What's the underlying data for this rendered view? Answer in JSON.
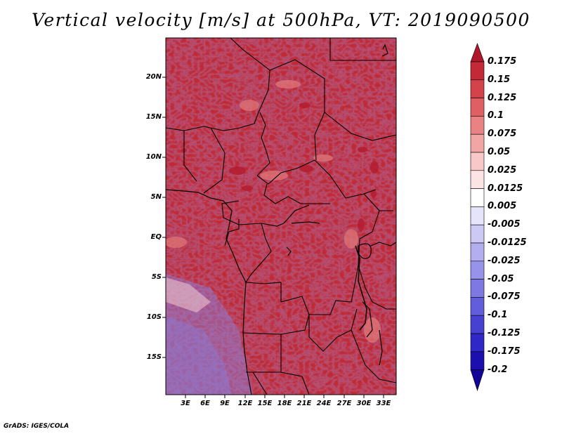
{
  "title": "Vertical velocity [m/s] at 500hPa, VT: 2019090500",
  "credit": "GrADS: IGES/COLA",
  "map": {
    "variable": "Vertical velocity",
    "units": "m/s",
    "level": "500hPa",
    "valid_time": "2019090500",
    "lat_labels": [
      "20N",
      "15N",
      "10N",
      "5N",
      "EQ",
      "5S",
      "10S",
      "15S"
    ],
    "lon_labels": [
      "3E",
      "6E",
      "9E",
      "12E",
      "15E",
      "18E",
      "21E",
      "24E",
      "27E",
      "30E",
      "33E"
    ]
  },
  "colorbar": {
    "levels": [
      "0.175",
      "0.15",
      "0.125",
      "0.1",
      "0.075",
      "0.05",
      "0.025",
      "0.0125",
      "0.005",
      "-0.005",
      "-0.0125",
      "-0.025",
      "-0.05",
      "-0.075",
      "-0.1",
      "-0.125",
      "-0.175",
      "-0.2"
    ],
    "colors": [
      "#b0172a",
      "#c32a35",
      "#d4434a",
      "#e05f63",
      "#e98282",
      "#f1a5a5",
      "#f8c8c8",
      "#fde4e4",
      "#ffffff",
      "#e6e4fb",
      "#cdc9f5",
      "#b3aef0",
      "#9893ea",
      "#7d78e2",
      "#625ddb",
      "#4741d2",
      "#2f27c6",
      "#1c0fb0",
      "#120598"
    ]
  }
}
